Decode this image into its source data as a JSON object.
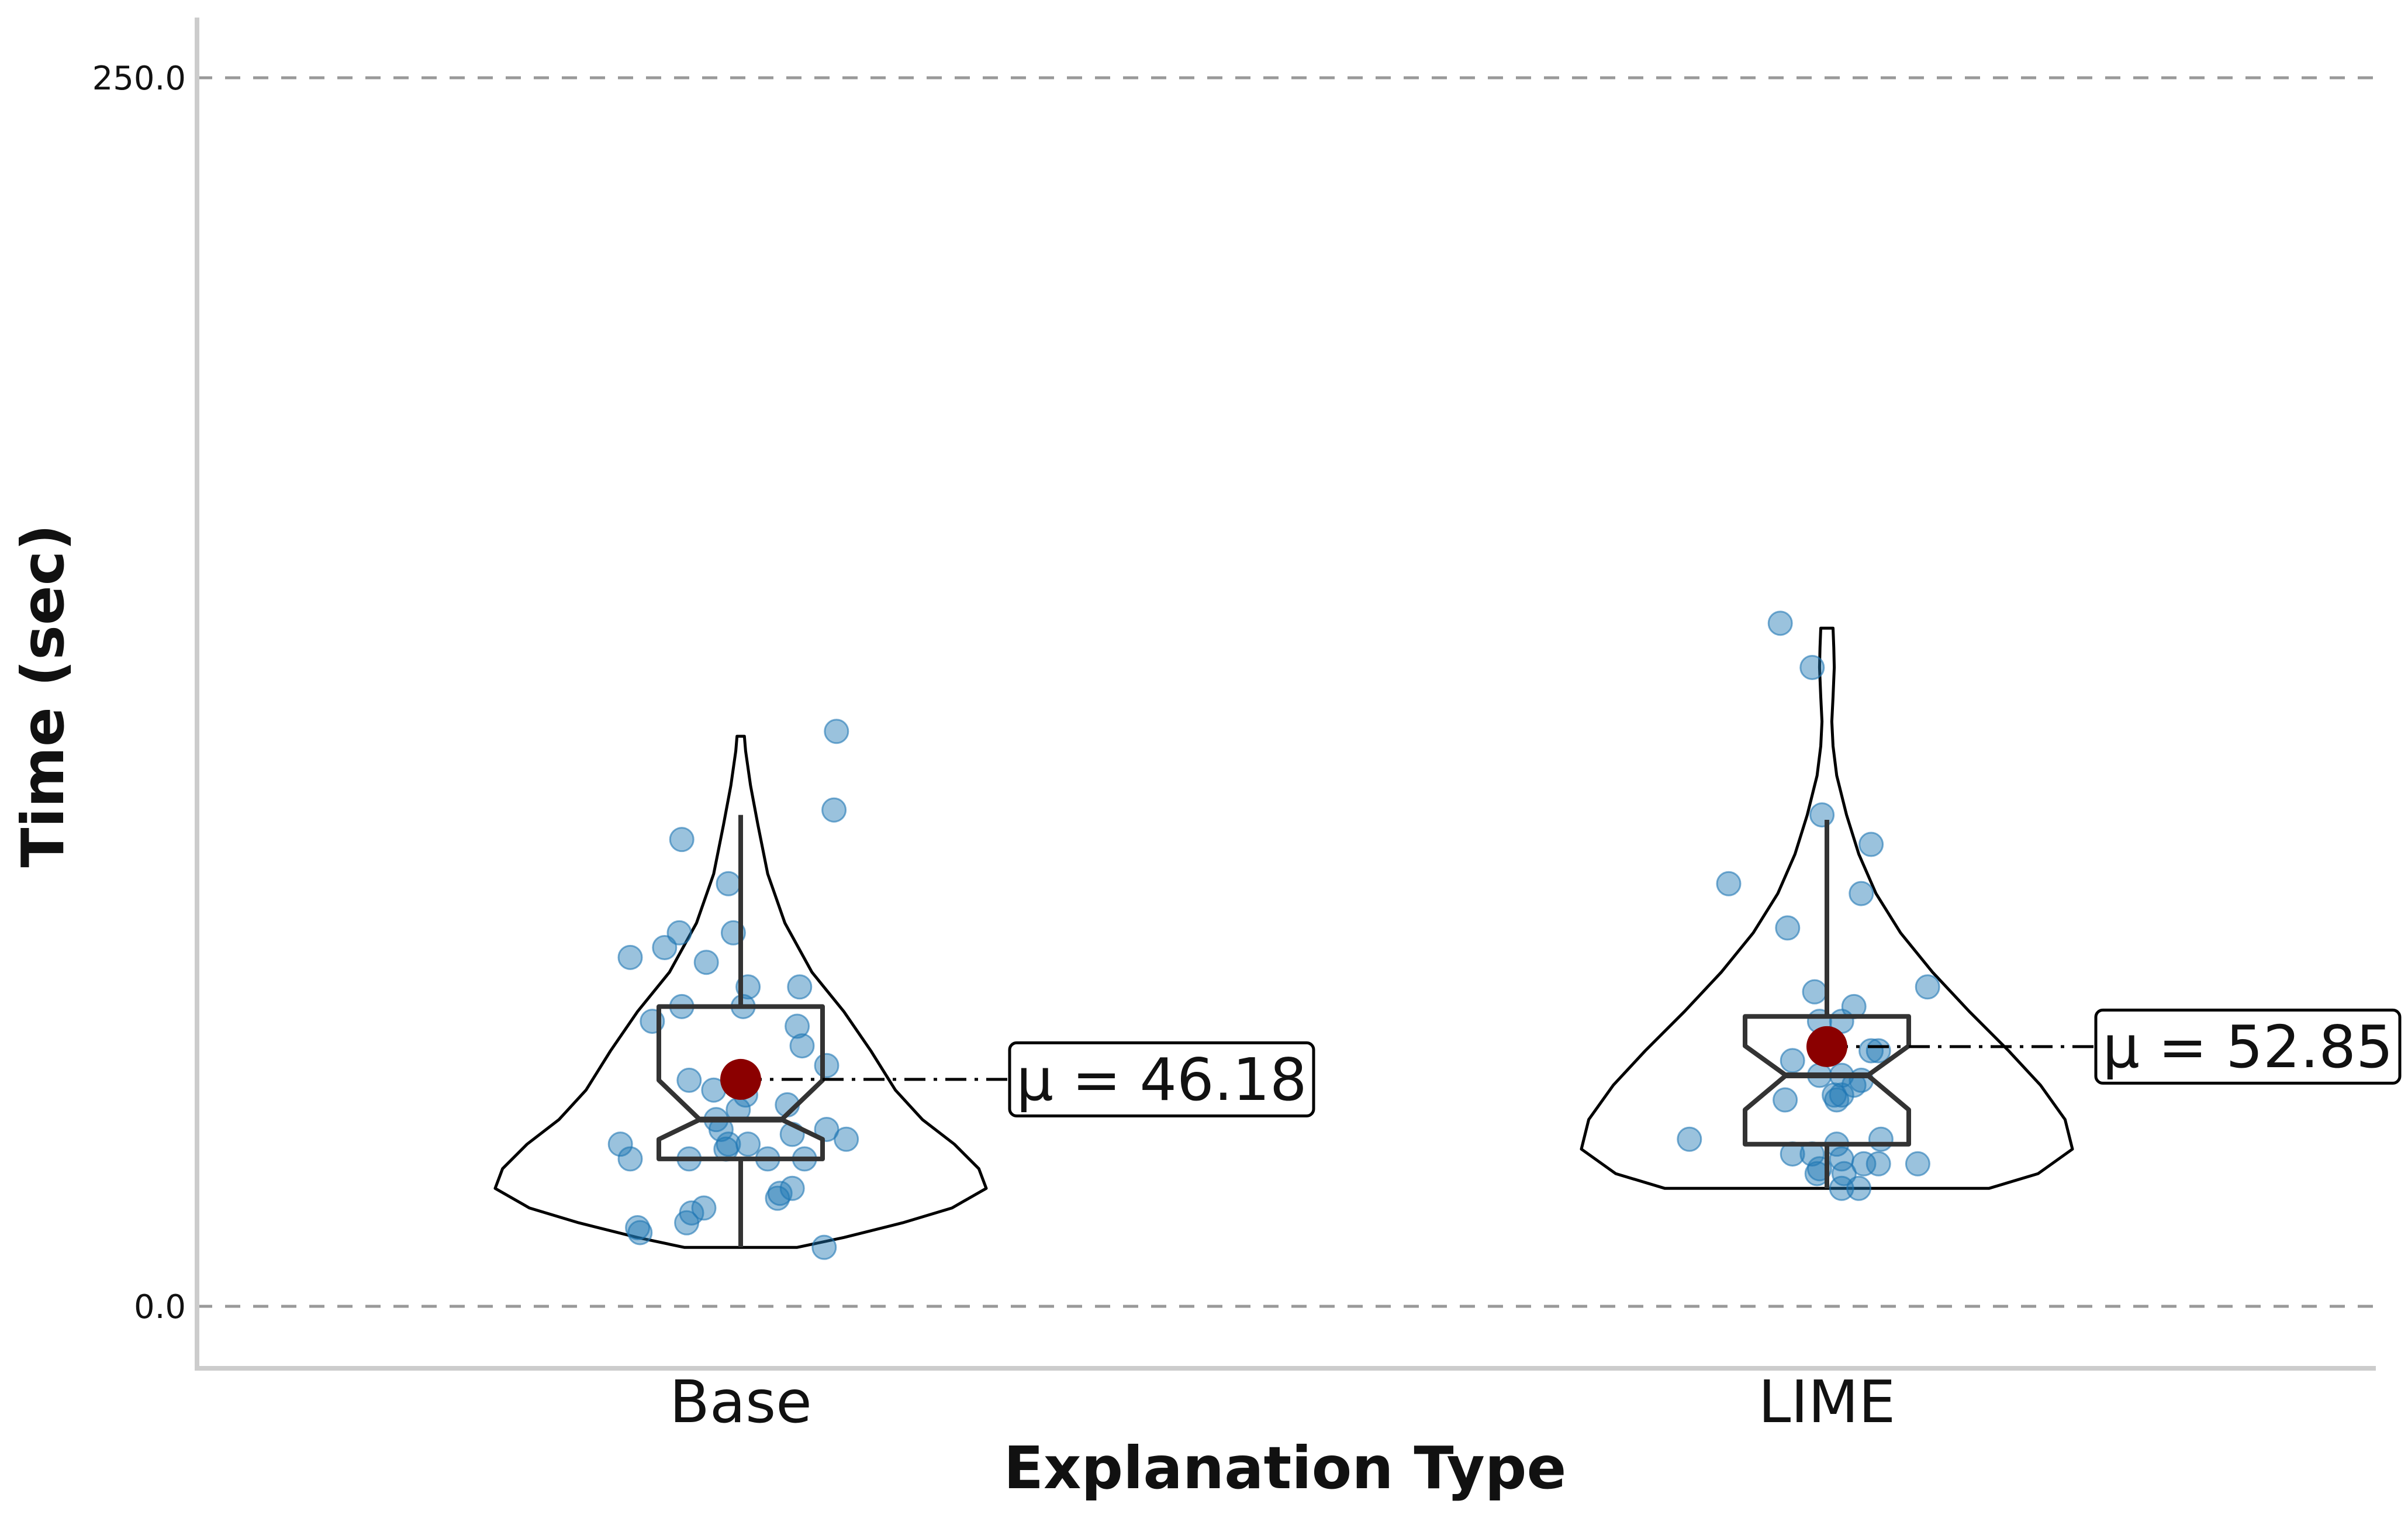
{
  "chart_data": {
    "type": "violin",
    "xlabel": "Explanation Type",
    "ylabel": "Time (sec)",
    "ylim": [
      -12.5,
      263
    ],
    "yticks": [
      0.0,
      250.0
    ],
    "ytick_labels": [
      "0.0",
      "250.0"
    ],
    "grid": "horizontal dashed at ticks",
    "colors": {
      "points": "#1f77b4",
      "mean_marker": "#8b0000",
      "box": "#333333",
      "violin": "#000000",
      "grid": "#999999",
      "axis": "#cccccc"
    },
    "categories": [
      "Base",
      "LIME"
    ],
    "groups": [
      {
        "category": "Base",
        "mean": 46.18,
        "mean_label": "μ = 46.18",
        "violin": {
          "min": 12,
          "max": 116,
          "profile": [
            [
              12,
              0.23
            ],
            [
              14,
              0.42
            ],
            [
              17,
              0.66
            ],
            [
              20,
              0.86
            ],
            [
              24,
              1.0
            ],
            [
              28,
              0.97
            ],
            [
              33,
              0.87
            ],
            [
              38,
              0.74
            ],
            [
              44,
              0.63
            ],
            [
              52,
              0.53
            ],
            [
              60,
              0.42
            ],
            [
              68,
              0.29
            ],
            [
              78,
              0.18
            ],
            [
              88,
              0.11
            ],
            [
              98,
              0.07
            ],
            [
              106,
              0.04
            ],
            [
              113,
              0.02
            ],
            [
              116,
              0.015
            ]
          ]
        },
        "box": {
          "whisker_low": 12,
          "q1": 30,
          "median": 38,
          "q3": 61,
          "whisker_high": 100,
          "notch_low": 34,
          "notch_high": 46
        },
        "points": [
          [
            0.34,
            12
          ],
          [
            -0.41,
            15
          ],
          [
            -0.42,
            16
          ],
          [
            -0.22,
            17
          ],
          [
            -0.2,
            19
          ],
          [
            -0.15,
            20
          ],
          [
            0.15,
            22
          ],
          [
            0.16,
            23
          ],
          [
            0.21,
            24
          ],
          [
            -0.45,
            30
          ],
          [
            0.11,
            30
          ],
          [
            0.26,
            30
          ],
          [
            -0.21,
            30
          ],
          [
            -0.06,
            32
          ],
          [
            -0.49,
            33
          ],
          [
            -0.05,
            33
          ],
          [
            0.03,
            33
          ],
          [
            0.43,
            34
          ],
          [
            0.21,
            35
          ],
          [
            0.35,
            36
          ],
          [
            -0.08,
            36
          ],
          [
            -0.1,
            38
          ],
          [
            -0.01,
            40
          ],
          [
            0.19,
            41
          ],
          [
            0.02,
            43
          ],
          [
            -0.11,
            44
          ],
          [
            -0.21,
            46
          ],
          [
            0.35,
            49
          ],
          [
            0.25,
            53
          ],
          [
            -0.36,
            58
          ],
          [
            0.23,
            57
          ],
          [
            -0.24,
            61
          ],
          [
            0.01,
            61
          ],
          [
            0.24,
            65
          ],
          [
            0.03,
            65
          ],
          [
            -0.14,
            70
          ],
          [
            -0.45,
            71
          ],
          [
            -0.31,
            73
          ],
          [
            -0.25,
            76
          ],
          [
            -0.03,
            76
          ],
          [
            -0.05,
            86
          ],
          [
            -0.24,
            95
          ],
          [
            0.38,
            101
          ],
          [
            0.39,
            117
          ]
        ]
      },
      {
        "category": "LIME",
        "mean": 52.85,
        "mean_label": "μ = 52.85",
        "violin": {
          "min": 24,
          "max": 138,
          "profile": [
            [
              24,
              0.66
            ],
            [
              27,
              0.86
            ],
            [
              32,
              1.0
            ],
            [
              38,
              0.97
            ],
            [
              45,
              0.87
            ],
            [
              52,
              0.74
            ],
            [
              60,
              0.58
            ],
            [
              68,
              0.43
            ],
            [
              76,
              0.3
            ],
            [
              84,
              0.2
            ],
            [
              92,
              0.13
            ],
            [
              100,
              0.08
            ],
            [
              108,
              0.04
            ],
            [
              114,
              0.025
            ],
            [
              119,
              0.02
            ],
            [
              124,
              0.025
            ],
            [
              130,
              0.03
            ],
            [
              134,
              0.028
            ],
            [
              138,
              0.025
            ]
          ]
        },
        "box": {
          "whisker_low": 24,
          "q1": 33,
          "median": 47,
          "q3": 59,
          "whisker_high": 99,
          "notch_low": 40,
          "notch_high": 53
        },
        "points": [
          [
            0.06,
            24
          ],
          [
            0.13,
            24
          ],
          [
            -0.04,
            27
          ],
          [
            0.07,
            27
          ],
          [
            -0.03,
            28
          ],
          [
            0.15,
            29
          ],
          [
            0.21,
            29
          ],
          [
            0.06,
            30
          ],
          [
            -0.06,
            31
          ],
          [
            -0.14,
            31
          ],
          [
            0.04,
            33
          ],
          [
            0.22,
            34
          ],
          [
            0.37,
            29
          ],
          [
            -0.56,
            34
          ],
          [
            -0.17,
            42
          ],
          [
            0.04,
            42
          ],
          [
            0.06,
            43
          ],
          [
            0.03,
            43
          ],
          [
            0.11,
            45
          ],
          [
            0.14,
            46
          ],
          [
            -0.03,
            47
          ],
          [
            0.06,
            47
          ],
          [
            -0.14,
            50
          ],
          [
            0.18,
            52
          ],
          [
            0.21,
            52
          ],
          [
            -0.02,
            54
          ],
          [
            -0.03,
            58
          ],
          [
            0.06,
            58
          ],
          [
            0.11,
            61
          ],
          [
            -0.05,
            64
          ],
          [
            0.41,
            65
          ],
          [
            -0.16,
            77
          ],
          [
            0.14,
            84
          ],
          [
            -0.4,
            86
          ],
          [
            0.18,
            94
          ],
          [
            -0.02,
            100
          ],
          [
            -0.06,
            130
          ],
          [
            -0.19,
            139
          ]
        ]
      }
    ]
  }
}
